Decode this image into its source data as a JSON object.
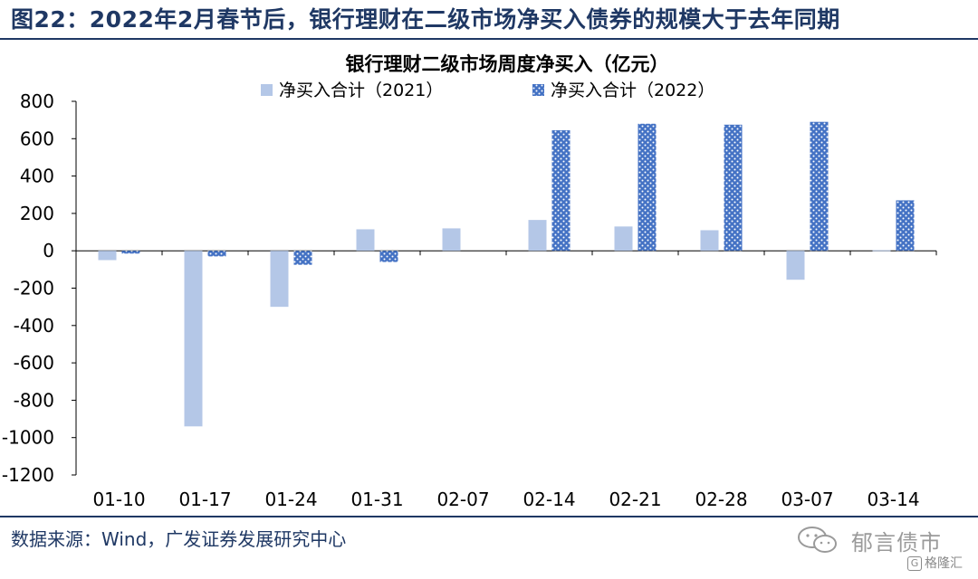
{
  "figure_title": "图22：2022年2月春节后，银行理财在二级市场净买入债券的规模大于去年同期",
  "source": "数据来源：Wind，广发证券发展研究中心",
  "watermark": {
    "name": "郁言债市",
    "badge_glyph": "G",
    "badge_text": "格隆汇",
    "icon": "wechat-icon"
  },
  "chart_data": {
    "type": "bar",
    "title": "银行理财二级市场周度净买入（亿元）",
    "xlabel": "",
    "ylabel": "",
    "ylim": [
      -1200,
      800
    ],
    "yticks": [
      800,
      600,
      400,
      200,
      0,
      -200,
      -400,
      -600,
      -800,
      -1000,
      -1200
    ],
    "categories": [
      "01-10",
      "01-17",
      "01-24",
      "01-31",
      "02-07",
      "02-14",
      "02-21",
      "02-28",
      "03-07",
      "03-14"
    ],
    "series": [
      {
        "name": "净买入合计（2021）",
        "color": "#b4c7e7",
        "pattern": "solid",
        "values": [
          -50,
          -940,
          -300,
          115,
          120,
          165,
          130,
          110,
          -155,
          3
        ]
      },
      {
        "name": "净买入合计（2022）",
        "color": "#4472c4",
        "pattern": "dotted",
        "values": [
          -15,
          -30,
          -75,
          -60,
          null,
          645,
          680,
          675,
          690,
          270
        ]
      }
    ],
    "grid": false,
    "legend_position": "top-center"
  }
}
